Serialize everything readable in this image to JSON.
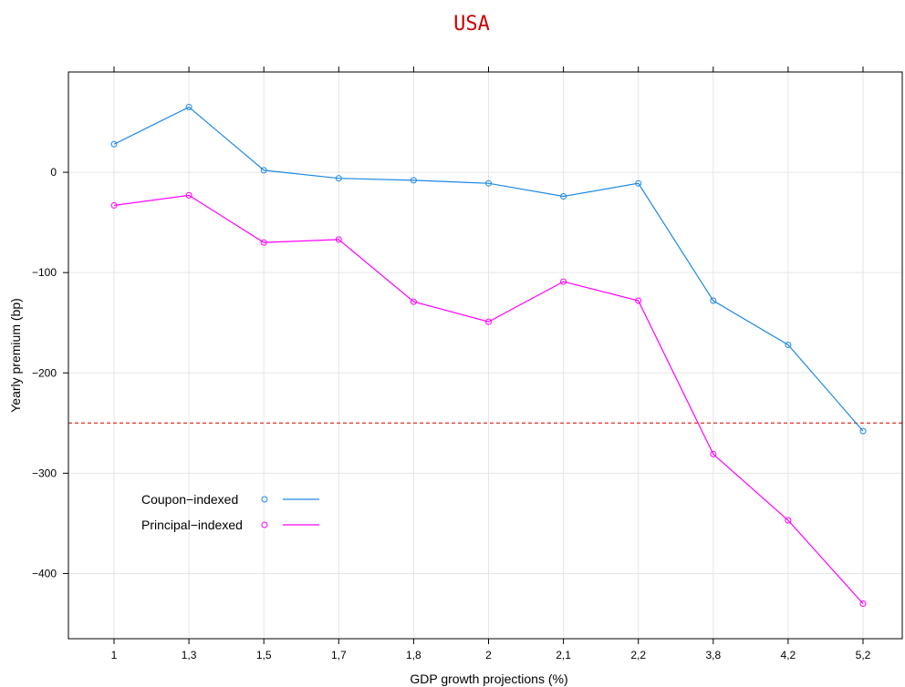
{
  "chart_data": {
    "type": "line",
    "title": "USA",
    "xlabel": "GDP growth projections (%)",
    "ylabel": "Yearly premium (bp)",
    "categories": [
      "1",
      "1,3",
      "1,5",
      "1,7",
      "1,8",
      "2",
      "2,1",
      "2,2",
      "3,8",
      "4,2",
      "5,2"
    ],
    "ylim": [
      -465,
      100
    ],
    "yticks": [
      -400,
      -300,
      -200,
      -100,
      0
    ],
    "ytick_labels": [
      "−400",
      "−300",
      "−200",
      "−100",
      "0"
    ],
    "grid": true,
    "reference_line": {
      "y": -250,
      "style": "dashed",
      "color": "#e0453a"
    },
    "legend_position": "bottom-left",
    "series": [
      {
        "name": "Coupon−indexed",
        "color": "#1e88e5",
        "values": [
          28,
          65,
          2,
          -6,
          -8,
          -11,
          -24,
          -11,
          -128,
          -172,
          -258
        ]
      },
      {
        "name": "Principal−indexed",
        "color": "#ff00ff",
        "values": [
          -33,
          -23,
          -70,
          -67,
          -129,
          -149,
          -109,
          -128,
          -281,
          -347,
          -430
        ]
      }
    ]
  }
}
